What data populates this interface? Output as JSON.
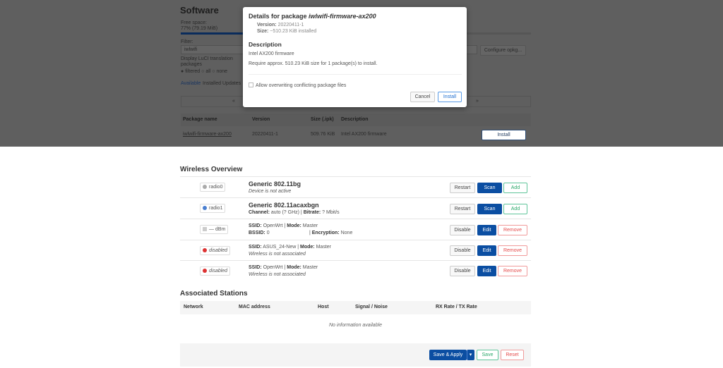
{
  "software": {
    "title": "Software",
    "free_space_label": "Free space:",
    "free_space_value": "77% (79.19 MiB)",
    "free_space_percent": 77,
    "filter_label": "Filter:",
    "filter_value": "iwlwifi",
    "translation_label": "Display LuCI translation packages",
    "translation_options": [
      "filtered",
      "all",
      "none"
    ],
    "configure_button": "Configure opkg...",
    "tabs": [
      "Available",
      "Installed",
      "Updates"
    ],
    "columns": [
      "Package name",
      "Version",
      "Size (.ipk)",
      "Description"
    ],
    "rows": [
      {
        "name": "iwlwifi-firmware-ax200",
        "version": "20220411-1",
        "size": "509.76 KiB",
        "description": "Intel AX200 firmware",
        "action": "Install"
      }
    ],
    "pager_prev": "«",
    "pager_next": "»"
  },
  "modal": {
    "title_prefix": "Details for package ",
    "package": "iwlwifi-firmware-ax200",
    "version_label": "Version:",
    "version": "20220411-1",
    "size_label": "Size:",
    "size": "~510.23 KiB installed",
    "description_heading": "Description",
    "description": "Intel AX200 firmware",
    "requirement": "Require approx. 510.23 KiB size for 1 package(s) to install.",
    "overwrite_label": "Allow overwriting conflicting package files",
    "cancel": "Cancel",
    "install": "Install"
  },
  "wireless": {
    "title": "Wireless Overview",
    "rows": [
      {
        "badge": "radio0",
        "title": "Generic 802.11bg",
        "sub": "Device is not active",
        "buttons": [
          "Restart",
          "Scan",
          "Add"
        ]
      },
      {
        "badge": "radio1",
        "title": "Generic 802.11acaxbgn",
        "channel_label": "Channel:",
        "channel": "auto (? GHz)",
        "bitrate_label": "Bitrate:",
        "bitrate": "? Mbit/s",
        "buttons": [
          "Restart",
          "Scan",
          "Add"
        ]
      },
      {
        "badge": "— dBm",
        "ssid_label": "SSID:",
        "ssid": "OpenWrt",
        "mode_label": "Mode:",
        "mode": "Master",
        "bssid_label": "BSSID:",
        "bssid": "0",
        "enc_label": "Encryption:",
        "enc": "None",
        "buttons": [
          "Disable",
          "Edit",
          "Remove"
        ]
      },
      {
        "badge": "disabled",
        "ssid_label": "SSID:",
        "ssid": "ASUS_24-New",
        "mode_label": "Mode:",
        "mode": "Master",
        "sub": "Wireless is not associated",
        "buttons": [
          "Disable",
          "Edit",
          "Remove"
        ]
      },
      {
        "badge": "disabled",
        "ssid_label": "SSID:",
        "ssid": "OpenWrt",
        "mode_label": "Mode:",
        "mode": "Master",
        "sub": "Wireless is not associated",
        "buttons": [
          "Disable",
          "Edit",
          "Remove"
        ]
      }
    ]
  },
  "stations": {
    "title": "Associated Stations",
    "columns": [
      "Network",
      "MAC address",
      "Host",
      "Signal / Noise",
      "RX Rate / TX Rate"
    ],
    "empty": "No information available"
  },
  "footer": {
    "save_apply": "Save & Apply",
    "dropdown": "▾",
    "save": "Save",
    "reset": "Reset"
  },
  "colors": {
    "primary": "#0b4ea2",
    "positive": "#2aa86a",
    "negative": "#e54b4b"
  }
}
